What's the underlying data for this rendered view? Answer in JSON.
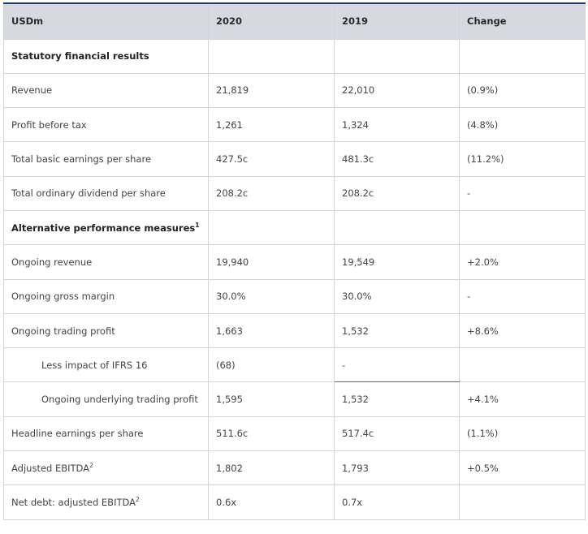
{
  "table": {
    "headers": [
      "USDm",
      "2020",
      "2019",
      "Change"
    ],
    "rows": [
      {
        "label": "Statutory financial results",
        "sup": "",
        "v2020": "",
        "v2019": "",
        "change": "",
        "type": "section"
      },
      {
        "label": "Revenue",
        "sup": "",
        "v2020": "21,819",
        "v2019": "22,010",
        "change": "(0.9%)",
        "type": "row"
      },
      {
        "label": "Profit before tax",
        "sup": "",
        "v2020": "1,261",
        "v2019": "1,324",
        "change": "(4.8%)",
        "type": "row"
      },
      {
        "label": "Total basic earnings per share",
        "sup": "",
        "v2020": "427.5c",
        "v2019": "481.3c",
        "change": "(11.2%)",
        "type": "row"
      },
      {
        "label": "Total ordinary dividend per share",
        "sup": "",
        "v2020": "208.2c",
        "v2019": "208.2c",
        "change": "-",
        "type": "row"
      },
      {
        "label": "Alternative performance measures",
        "sup": "1",
        "v2020": "",
        "v2019": "",
        "change": "",
        "type": "section"
      },
      {
        "label": "Ongoing revenue",
        "sup": "",
        "v2020": "19,940",
        "v2019": "19,549",
        "change": "+2.0%",
        "type": "row"
      },
      {
        "label": "Ongoing gross margin",
        "sup": "",
        "v2020": "30.0%",
        "v2019": "30.0%",
        "change": "-",
        "type": "row"
      },
      {
        "label": "Ongoing trading profit",
        "sup": "",
        "v2020": "1,663",
        "v2019": "1,532",
        "change": "+8.6%",
        "type": "row"
      },
      {
        "label": "Less impact of IFRS 16",
        "sup": "",
        "v2020": "(68)",
        "v2019": "-",
        "change": "",
        "type": "indent"
      },
      {
        "label": "Ongoing underlying trading profit",
        "sup": "",
        "v2020": "1,595",
        "v2019": "1,532",
        "change": "+4.1%",
        "type": "indent"
      },
      {
        "label": "Headline earnings per share",
        "sup": "",
        "v2020": "511.6c",
        "v2019": "517.4c",
        "change": "(1.1%)",
        "type": "row"
      },
      {
        "label": "Adjusted EBITDA",
        "sup": "2",
        "v2020": "1,802",
        "v2019": "1,793",
        "change": "+0.5%",
        "type": "row"
      },
      {
        "label": "Net debt: adjusted EBITDA",
        "sup": "2",
        "v2020": "0.6x",
        "v2019": "0.7x",
        "change": "",
        "type": "row"
      }
    ]
  }
}
